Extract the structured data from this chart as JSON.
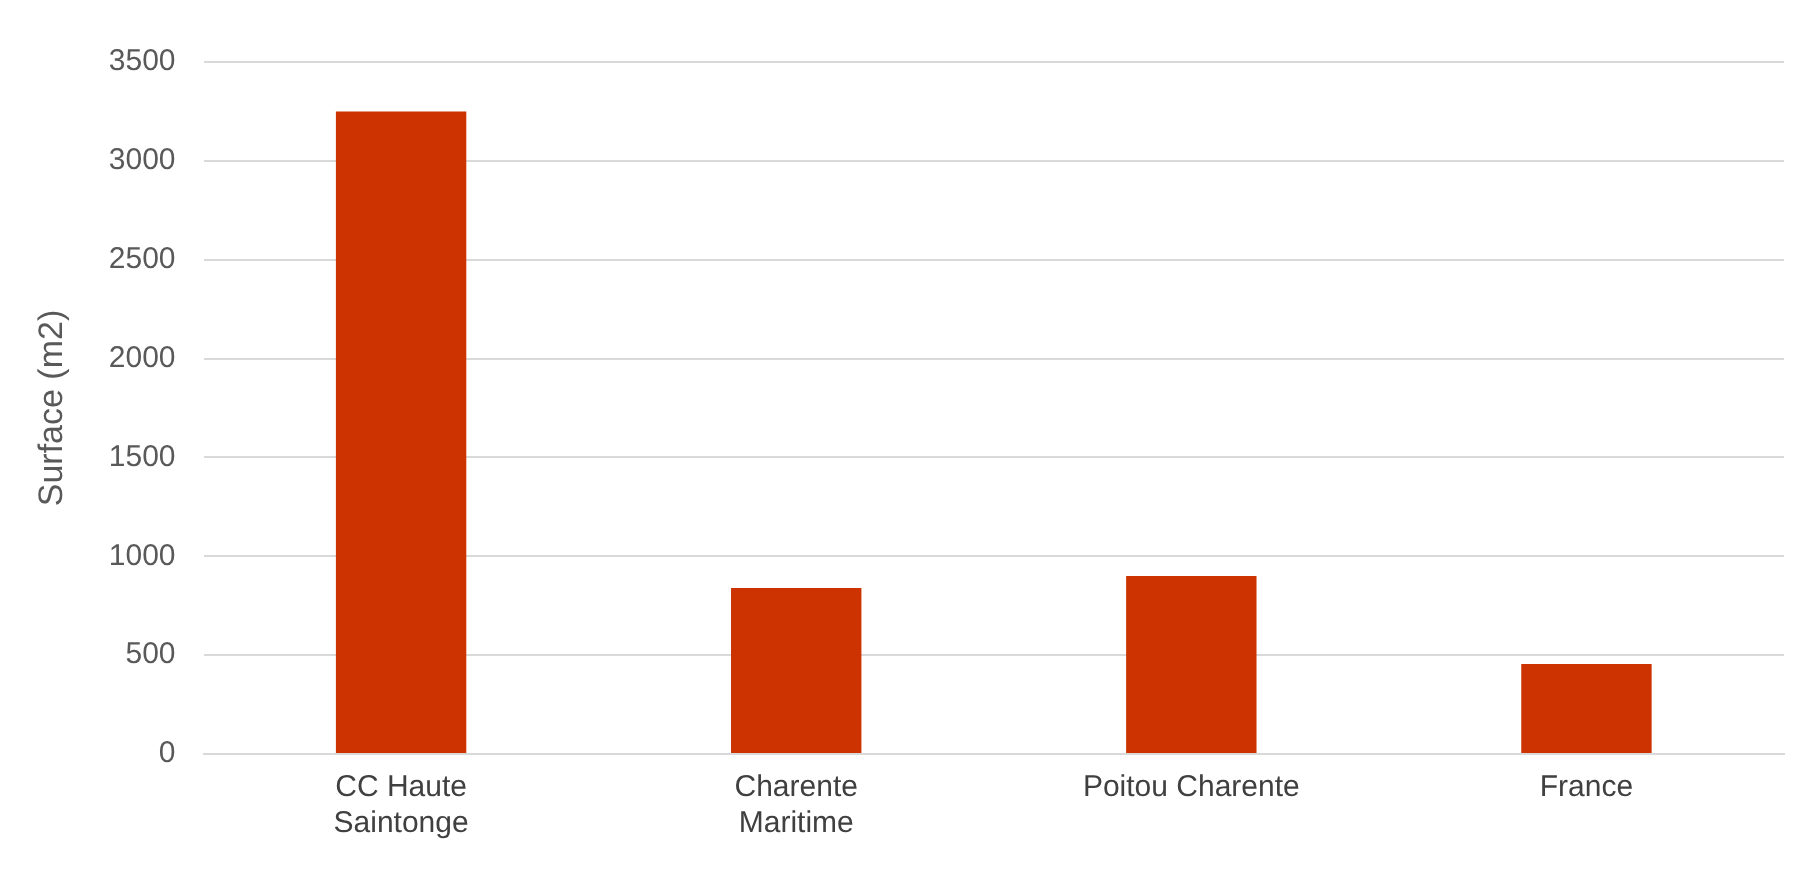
{
  "chart_data": {
    "type": "bar",
    "ylabel": "Surface (m2)",
    "categories": [
      "CC Haute Saintonge",
      "Charente Maritime",
      "Poitou Charente",
      "France"
    ],
    "values": [
      3250,
      840,
      900,
      455
    ],
    "color": "#cc3300",
    "ylim": [
      0,
      3500
    ],
    "yticks": [
      0,
      500,
      1000,
      1500,
      2000,
      2500,
      3000,
      3500
    ],
    "grid": "y",
    "legend": false
  }
}
